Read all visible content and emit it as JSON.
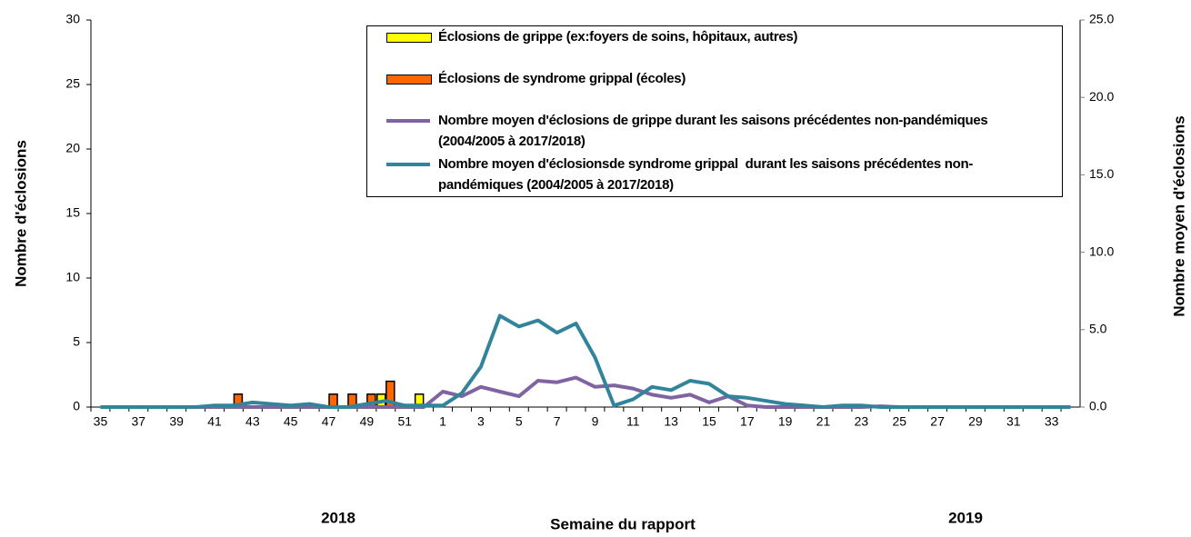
{
  "chart_data": {
    "type": "bar",
    "y_label": "Nombre d'éclosions",
    "y2_label": "Nombre moyen d'éclosions",
    "x_label": "Semaine du rapport",
    "annotations": [
      "2018",
      "2019"
    ],
    "categories": [
      "35",
      null,
      "37",
      null,
      "39",
      null,
      "41",
      null,
      "43",
      null,
      "45",
      null,
      "47",
      null,
      "49",
      null,
      "51",
      null,
      "1",
      null,
      "3",
      null,
      "5",
      null,
      "7",
      null,
      "9",
      null,
      "11",
      null,
      "13",
      null,
      "15",
      null,
      "17",
      null,
      "19",
      null,
      "21",
      null,
      "23",
      null,
      "25",
      null,
      "27",
      null,
      "29",
      null,
      "31",
      null,
      "33",
      null
    ],
    "ylim": [
      0,
      30
    ],
    "yticks": [
      0,
      5,
      10,
      15,
      20,
      25,
      30
    ],
    "y2lim": [
      0,
      25
    ],
    "y2ticks": [
      {
        "value": 0,
        "label": "0.0"
      },
      {
        "value": 5,
        "label": "5.0"
      },
      {
        "value": 10,
        "label": "10.0"
      },
      {
        "value": 15,
        "label": "15.0"
      },
      {
        "value": 20,
        "label": "20.0"
      },
      {
        "value": 25,
        "label": "25.0"
      }
    ],
    "series": [
      {
        "name": "Éclosions de grippe (ex:foyers de soins, hôpitaux, autres)",
        "type": "bar",
        "color": "#ffff00",
        "values": [
          0,
          0,
          0,
          0,
          0,
          0,
          0,
          0,
          0,
          0,
          0,
          0,
          0,
          0,
          0,
          1,
          0,
          1,
          0,
          0,
          0,
          0,
          0,
          0,
          0,
          0,
          0,
          0,
          0,
          0,
          0,
          0,
          0,
          0,
          0,
          0,
          0,
          0,
          0,
          0,
          0,
          0,
          0,
          0,
          0,
          0,
          0,
          0,
          0,
          0,
          0,
          0
        ]
      },
      {
        "name": "Éclosions de syndrome grippal (écoles)",
        "type": "bar",
        "color": "#ff6600",
        "values": [
          0,
          0,
          0,
          0,
          0,
          0,
          0,
          1,
          0,
          0,
          0,
          0,
          1,
          1,
          1,
          2,
          0,
          0,
          0,
          0,
          0,
          0,
          0,
          0,
          0,
          0,
          0,
          0,
          0,
          0,
          0,
          0,
          0,
          0,
          0,
          0,
          0,
          0,
          0,
          0,
          0,
          0,
          0,
          0,
          0,
          0,
          0,
          0,
          0,
          0,
          0,
          0
        ]
      },
      {
        "name": "Nombre moyen d'éclosions de grippe durant les saisons précédentes non-pandémiques (2004/2005 à 2017/2018)",
        "type": "line",
        "axis": "y2",
        "color": "#8064a2",
        "values": [
          0,
          0,
          0,
          0,
          0,
          0,
          0,
          0,
          0,
          0,
          0,
          0,
          0,
          0,
          0,
          0,
          0,
          0,
          1.0,
          0.7,
          1.3,
          1.0,
          0.7,
          1.7,
          1.6,
          1.9,
          1.3,
          1.4,
          1.2,
          0.8,
          0.6,
          0.8,
          0.3,
          0.7,
          0.1,
          0,
          0,
          0,
          0,
          0,
          0,
          0.05,
          0,
          0,
          0,
          0,
          0,
          0,
          0,
          0,
          0,
          0
        ]
      },
      {
        "name": "Nombre moyen d'éclosionsde syndrome grippal  durant les saisons précédentes non-pandémiques (2004/2005 à 2017/2018)",
        "type": "line",
        "axis": "y2",
        "color": "#31849b",
        "values": [
          0,
          0,
          0,
          0,
          0,
          0,
          0.1,
          0.1,
          0.3,
          0.2,
          0.1,
          0.2,
          0,
          0,
          0.2,
          0.4,
          0.1,
          0.1,
          0.1,
          0.9,
          2.6,
          5.9,
          5.2,
          5.6,
          4.8,
          5.4,
          3.2,
          0.1,
          0.5,
          1.3,
          1.1,
          1.7,
          1.5,
          0.7,
          0.6,
          0.4,
          0.2,
          0.1,
          0,
          0.1,
          0.1,
          0,
          0,
          0,
          0,
          0,
          0,
          0,
          0,
          0,
          0,
          0
        ]
      }
    ]
  }
}
